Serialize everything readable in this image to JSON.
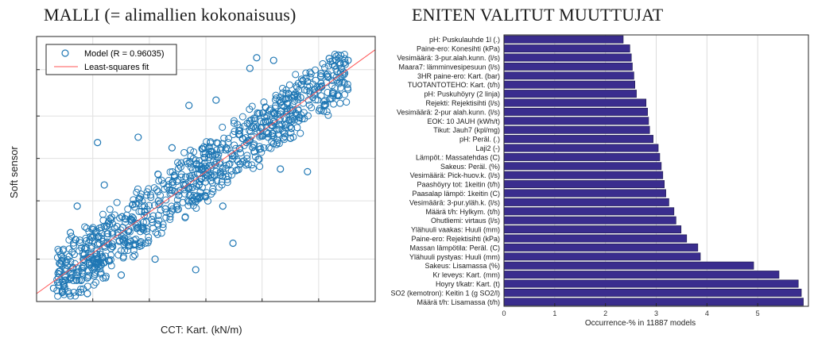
{
  "chart_data": [
    {
      "type": "scatter",
      "title": "MALLI (= alimallien kokonaisuus)",
      "xlabel": "CCT: Kart. (kN/m)",
      "ylabel": "Soft sensor",
      "legend": {
        "position": "top-left",
        "entries": [
          "Model (R = 0.96035)",
          "Least-squares fit"
        ]
      },
      "grid": true,
      "marker_color": "#1f77b4",
      "fit_color": "#ff5555",
      "series": [
        {
          "name": "Model (R = 0.96035)",
          "points": [
            [
              0.05,
              0.05
            ],
            [
              0.08,
              0.06
            ],
            [
              0.1,
              0.09
            ],
            [
              0.12,
              0.11
            ],
            [
              0.14,
              0.13
            ],
            [
              0.16,
              0.18
            ],
            [
              0.18,
              0.16
            ],
            [
              0.2,
              0.21
            ],
            [
              0.22,
              0.2
            ],
            [
              0.24,
              0.26
            ],
            [
              0.26,
              0.24
            ],
            [
              0.28,
              0.3
            ],
            [
              0.3,
              0.28
            ],
            [
              0.32,
              0.34
            ],
            [
              0.34,
              0.31
            ],
            [
              0.36,
              0.38
            ],
            [
              0.38,
              0.35
            ],
            [
              0.4,
              0.42
            ],
            [
              0.42,
              0.4
            ],
            [
              0.44,
              0.47
            ],
            [
              0.46,
              0.43
            ],
            [
              0.48,
              0.5
            ],
            [
              0.5,
              0.48
            ],
            [
              0.52,
              0.55
            ],
            [
              0.54,
              0.52
            ],
            [
              0.56,
              0.58
            ],
            [
              0.58,
              0.55
            ],
            [
              0.6,
              0.63
            ],
            [
              0.62,
              0.6
            ],
            [
              0.64,
              0.66
            ],
            [
              0.66,
              0.64
            ],
            [
              0.68,
              0.7
            ],
            [
              0.7,
              0.68
            ],
            [
              0.72,
              0.75
            ],
            [
              0.74,
              0.72
            ],
            [
              0.76,
              0.78
            ],
            [
              0.78,
              0.77
            ],
            [
              0.8,
              0.83
            ],
            [
              0.82,
              0.8
            ],
            [
              0.84,
              0.86
            ],
            [
              0.86,
              0.85
            ],
            [
              0.88,
              0.89
            ],
            [
              0.9,
              0.88
            ],
            [
              0.92,
              0.91
            ],
            [
              0.12,
              0.36
            ],
            [
              0.18,
              0.6
            ],
            [
              0.45,
              0.74
            ],
            [
              0.53,
              0.76
            ],
            [
              0.63,
              0.88
            ],
            [
              0.7,
              0.91
            ],
            [
              0.85,
              0.74
            ],
            [
              0.47,
              0.12
            ],
            [
              0.25,
              0.1
            ],
            [
              0.58,
              0.22
            ],
            [
              0.72,
              0.5
            ],
            [
              0.8,
              0.49
            ],
            [
              0.35,
              0.16
            ],
            [
              0.1,
              0.26
            ],
            [
              0.15,
              0.03
            ],
            [
              0.3,
              0.62
            ],
            [
              0.65,
              0.92
            ],
            [
              0.4,
              0.58
            ],
            [
              0.55,
              0.36
            ],
            [
              0.2,
              0.44
            ]
          ]
        }
      ],
      "fit_line": {
        "slope": 0.92,
        "intercept": 0.03
      }
    },
    {
      "type": "bar",
      "orientation": "horizontal",
      "title": "ENITEN VALITUT MUUTTUJAT",
      "xlabel": "Occurrence-% in 11887 models",
      "xlim": [
        0,
        6
      ],
      "xticks": [
        "0",
        "1",
        "2",
        "3",
        "4",
        "5"
      ],
      "grid": true,
      "bar_color": "#3a2d8e",
      "categories": [
        "pH: Puskulauhde 1l (.)",
        "Paine-ero: Konesihti (kPa)",
        "Vesimäärä: 3-pur.alah.kunn. (l/s)",
        "Maara7: lämminvesipesuun (l/s)",
        "3HR paine-ero: Kart. (bar)",
        "TUOTANTOTEHO: Kart. (t/h)",
        "pH: Puskuhöyry (2 linja)",
        "Rejekti: Rejektisihti (l/s)",
        "Vesimäärä: 2-pur alah.kunn. (l/s)",
        "EOK: 10 JAUH (kWh/t)",
        "Tikut: Jauh7 (kpl/mg)",
        "pH: Peräl. (.)",
        "Laji2 (-)",
        "Lämpöt.: Massatehdas (C)",
        "Sakeus: Peräl. (%)",
        "Vesimäärä: Pick-huov.k. (l/s)",
        "Paashöyry tot: 1keitin (t/h)",
        "Paasalap lämpö: 1keitin (C)",
        "Vesimäärä: 3-pur.yläh.k. (l/s)",
        "Määrä t/h: Hylkym. (t/h)",
        "Ohutliemi: virtaus (l/s)",
        "Ylähuuli vaakas: Huuli (mm)",
        "Paine-ero: Rejektisihti (kPa)",
        "Massan lämpötila: Peräl. (C)",
        "Ylähuuli pystyas: Huuli (mm)",
        "Sakeus: Lisamassa (%)",
        "Kr leveys: Kart. (mm)",
        "Hoyry t/katr: Kart. (t)",
        "SO2 (kemotron): Keitin 1 (g SO2/l)",
        "Määrä t/h: Lisamassa (t/h)"
      ],
      "values": [
        2.35,
        2.48,
        2.51,
        2.53,
        2.56,
        2.58,
        2.61,
        2.8,
        2.83,
        2.85,
        2.87,
        2.94,
        3.04,
        3.07,
        3.1,
        3.13,
        3.16,
        3.19,
        3.25,
        3.35,
        3.39,
        3.49,
        3.6,
        3.82,
        3.87,
        4.92,
        5.42,
        5.8,
        5.86,
        5.9
      ]
    }
  ]
}
